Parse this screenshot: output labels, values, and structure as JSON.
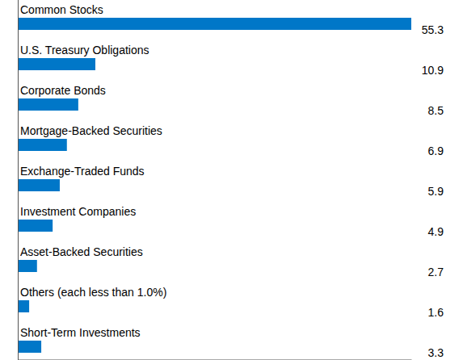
{
  "chart_data": {
    "type": "bar",
    "orientation": "horizontal",
    "categories": [
      "Common Stocks",
      "U.S. Treasury Obligations",
      "Corporate Bonds",
      "Mortgage-Backed Securities",
      "Exchange-Traded Funds",
      "Investment Companies",
      "Asset-Backed Securities",
      "Others (each less than 1.0%)",
      "Short-Term Investments"
    ],
    "values": [
      55.3,
      10.9,
      8.5,
      6.9,
      5.9,
      4.9,
      2.7,
      1.6,
      3.3
    ],
    "color": "#0077c8",
    "xlim": [
      0,
      55.3
    ],
    "data_labels": true,
    "tick_labels": false,
    "grid": false
  }
}
